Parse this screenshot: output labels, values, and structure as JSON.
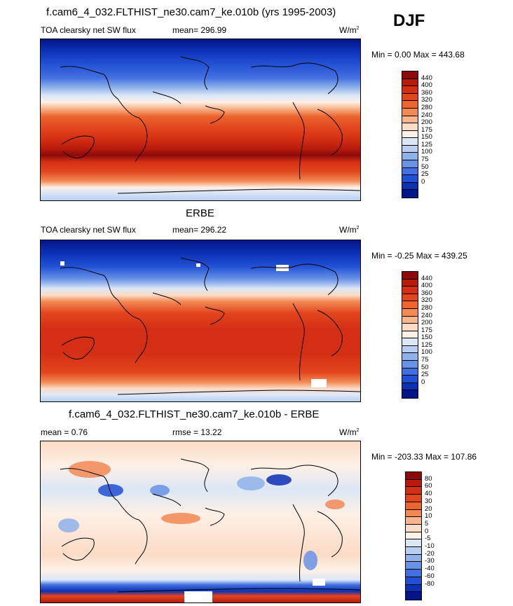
{
  "season": "DJF",
  "panel1": {
    "title": "f.cam6_4_032.FLTHIST_ne30.cam7_ke.010b (yrs 1995-2003)",
    "field": "TOA clearsky net SW flux",
    "mean": "mean= 296.99",
    "units": "W/m",
    "units_sup": "2",
    "minmax": "Min =   0.00 Max = 443.68"
  },
  "panel2": {
    "title": "ERBE",
    "field": "TOA clearsky net SW flux",
    "mean": "mean= 296.22",
    "units": "W/m",
    "units_sup": "2",
    "minmax": "Min =  -0.25 Max = 439.25"
  },
  "panel3": {
    "title": "f.cam6_4_032.FLTHIST_ne30.cam7_ke.010b - ERBE",
    "mean": "mean =   0.76",
    "rmse": "rmse =  13.22",
    "units": "W/m",
    "units_sup": "2",
    "minmax": "Min = -203.33 Max = 107.86"
  },
  "colorbar_abs": {
    "colors": [
      "#8c0a0a",
      "#b81a0c",
      "#d42f14",
      "#e2461e",
      "#ec642e",
      "#f38a56",
      "#f8b48d",
      "#fcdcc6",
      "#fdf0e6",
      "#dce7f6",
      "#b8cff0",
      "#8fb2ea",
      "#6892e6",
      "#4370e0",
      "#2150d4",
      "#0d31b4",
      "#021589"
    ],
    "ticks": [
      "440",
      "400",
      "360",
      "320",
      "280",
      "240",
      "200",
      "175",
      "150",
      "125",
      "100",
      "75",
      "50",
      "25",
      "0"
    ]
  },
  "colorbar_diff": {
    "colors": [
      "#8c0a0a",
      "#b81a0c",
      "#d42f14",
      "#e2461e",
      "#ec642e",
      "#f38a56",
      "#f8b48d",
      "#fcdcc6",
      "#fdf0e6",
      "#dce7f6",
      "#b8cff0",
      "#8fb2ea",
      "#6892e6",
      "#4370e0",
      "#2150d4",
      "#0d31b4",
      "#021589"
    ],
    "ticks": [
      "80",
      "60",
      "40",
      "30",
      "20",
      "10",
      "5",
      "0",
      "-5",
      "-10",
      "-20",
      "-30",
      "-40",
      "-60",
      "-80"
    ]
  }
}
